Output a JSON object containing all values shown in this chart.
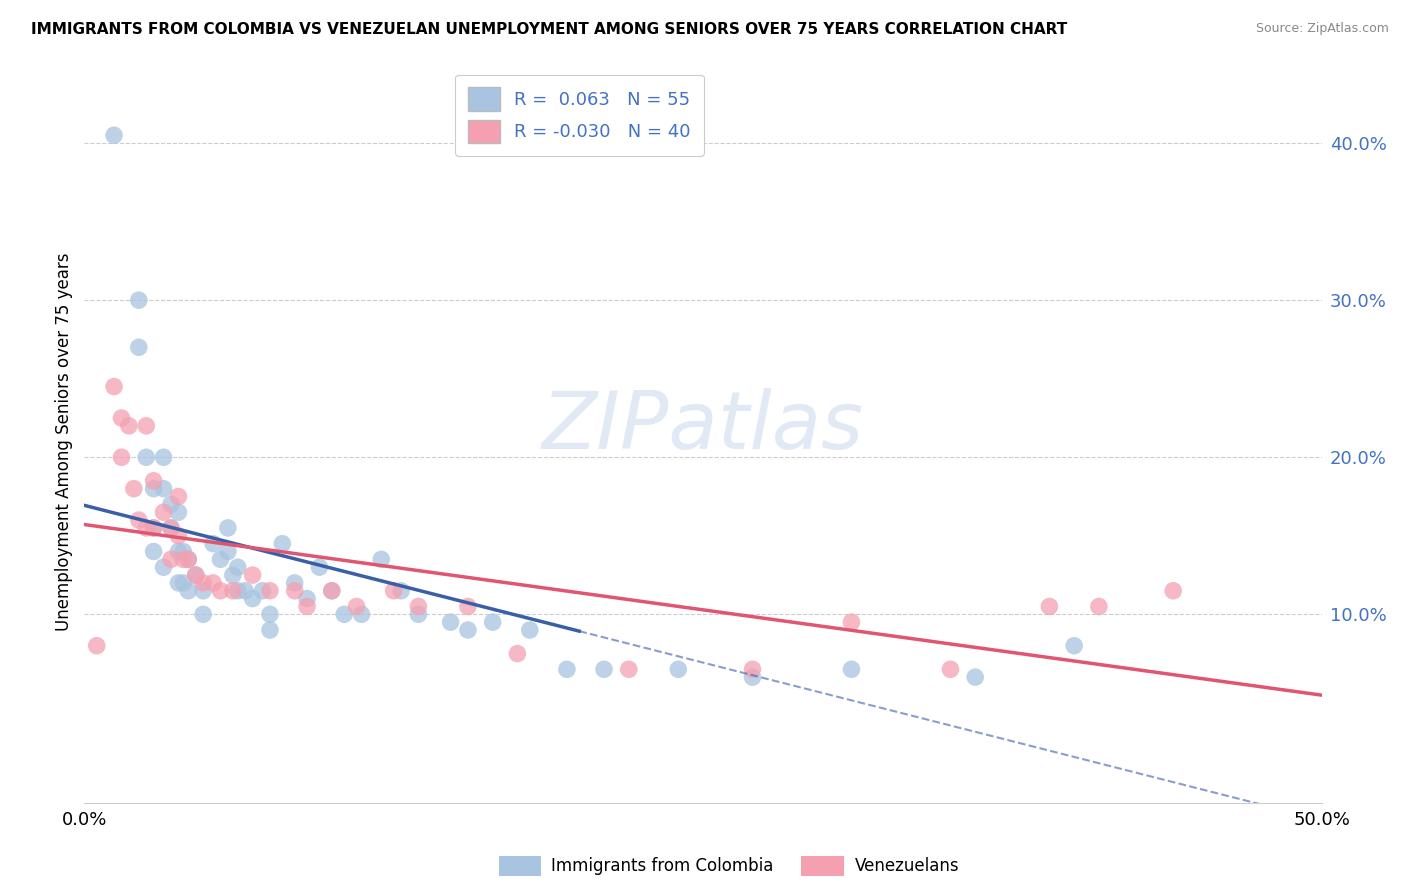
{
  "title": "IMMIGRANTS FROM COLOMBIA VS VENEZUELAN UNEMPLOYMENT AMONG SENIORS OVER 75 YEARS CORRELATION CHART",
  "source": "Source: ZipAtlas.com",
  "ylabel": "Unemployment Among Seniors over 75 years",
  "y_ticks": [
    0.1,
    0.2,
    0.3,
    0.4
  ],
  "y_tick_labels": [
    "10.0%",
    "20.0%",
    "30.0%",
    "40.0%"
  ],
  "xlim": [
    0.0,
    0.5
  ],
  "ylim": [
    -0.02,
    0.44
  ],
  "legend_r_blue": "0.063",
  "legend_n_blue": "55",
  "legend_r_pink": "-0.030",
  "legend_n_pink": "40",
  "blue_color": "#a8c4e0",
  "pink_color": "#f4a0b0",
  "trend_blue_color": "#3a5fa8",
  "trend_pink_color": "#e05570",
  "watermark_text": "ZIPatlas",
  "grid_color": "#cccccc",
  "blue_scatter_x": [
    0.012,
    0.022,
    0.022,
    0.025,
    0.028,
    0.028,
    0.028,
    0.032,
    0.032,
    0.032,
    0.035,
    0.035,
    0.038,
    0.038,
    0.038,
    0.04,
    0.04,
    0.042,
    0.042,
    0.045,
    0.048,
    0.048,
    0.052,
    0.055,
    0.058,
    0.058,
    0.06,
    0.062,
    0.062,
    0.065,
    0.068,
    0.072,
    0.075,
    0.075,
    0.08,
    0.085,
    0.09,
    0.095,
    0.1,
    0.105,
    0.112,
    0.12,
    0.128,
    0.135,
    0.148,
    0.155,
    0.165,
    0.18,
    0.195,
    0.21,
    0.24,
    0.27,
    0.31,
    0.36,
    0.4
  ],
  "blue_scatter_y": [
    0.405,
    0.3,
    0.27,
    0.2,
    0.18,
    0.155,
    0.14,
    0.2,
    0.18,
    0.13,
    0.17,
    0.155,
    0.165,
    0.14,
    0.12,
    0.14,
    0.12,
    0.135,
    0.115,
    0.125,
    0.115,
    0.1,
    0.145,
    0.135,
    0.155,
    0.14,
    0.125,
    0.13,
    0.115,
    0.115,
    0.11,
    0.115,
    0.1,
    0.09,
    0.145,
    0.12,
    0.11,
    0.13,
    0.115,
    0.1,
    0.1,
    0.135,
    0.115,
    0.1,
    0.095,
    0.09,
    0.095,
    0.09,
    0.065,
    0.065,
    0.065,
    0.06,
    0.065,
    0.06,
    0.08
  ],
  "pink_scatter_x": [
    0.005,
    0.012,
    0.015,
    0.015,
    0.018,
    0.02,
    0.022,
    0.025,
    0.025,
    0.028,
    0.028,
    0.032,
    0.035,
    0.035,
    0.038,
    0.038,
    0.04,
    0.042,
    0.045,
    0.048,
    0.052,
    0.055,
    0.06,
    0.068,
    0.075,
    0.085,
    0.09,
    0.1,
    0.11,
    0.125,
    0.135,
    0.155,
    0.175,
    0.22,
    0.27,
    0.31,
    0.35,
    0.39,
    0.41,
    0.44
  ],
  "pink_scatter_y": [
    0.08,
    0.245,
    0.225,
    0.2,
    0.22,
    0.18,
    0.16,
    0.22,
    0.155,
    0.185,
    0.155,
    0.165,
    0.155,
    0.135,
    0.175,
    0.15,
    0.135,
    0.135,
    0.125,
    0.12,
    0.12,
    0.115,
    0.115,
    0.125,
    0.115,
    0.115,
    0.105,
    0.115,
    0.105,
    0.115,
    0.105,
    0.105,
    0.075,
    0.065,
    0.065,
    0.095,
    0.065,
    0.105,
    0.105,
    0.115
  ]
}
